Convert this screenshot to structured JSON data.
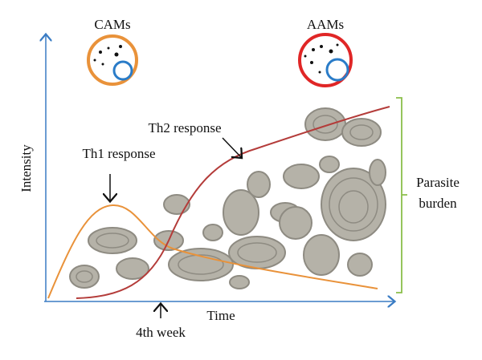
{
  "cells": {
    "left": "CAMs",
    "right": "AAMs"
  },
  "curves": {
    "th1": "Th1 response",
    "th2": "Th2 response"
  },
  "axes": {
    "y": "Intensity",
    "x": "Time"
  },
  "marker": "4th week",
  "bracket": [
    "Parasite",
    "burden"
  ]
}
